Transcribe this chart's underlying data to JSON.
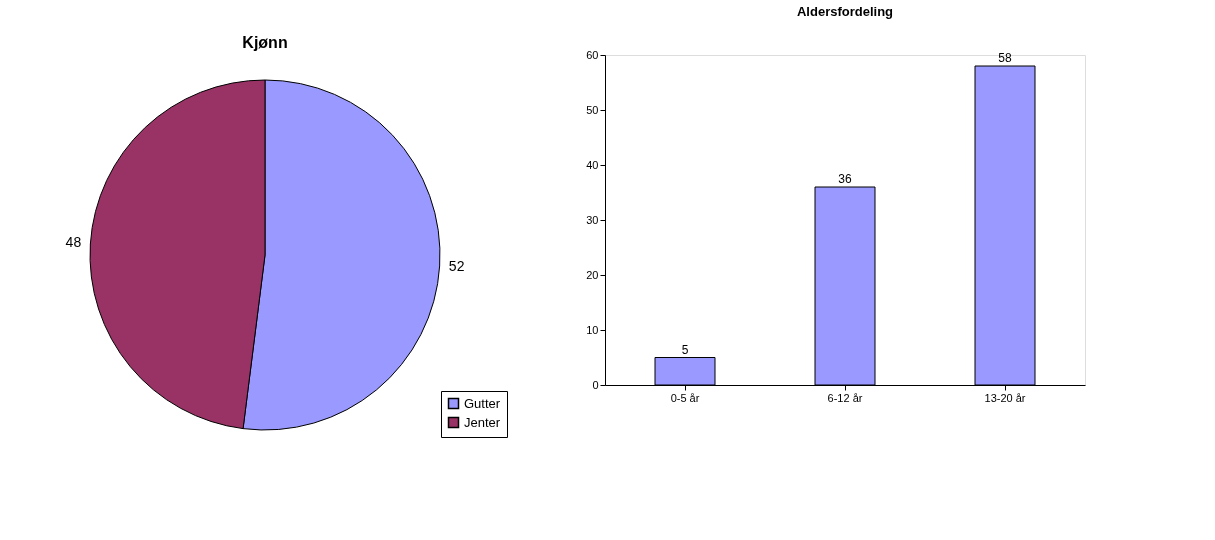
{
  "chart_data": [
    {
      "type": "pie",
      "title": "Kjønn",
      "categories": [
        "Gutter",
        "Jenter"
      ],
      "values": [
        52,
        48
      ],
      "colors": [
        "#9999ff",
        "#993366"
      ],
      "data_labels": true,
      "legend": "bottom right"
    },
    {
      "type": "bar",
      "title": "Aldersfordeling",
      "categories": [
        "0-5 år",
        "6-12 år",
        "13-20 år"
      ],
      "values": [
        5,
        36,
        58
      ],
      "color": "#9999ff",
      "ylim": [
        0,
        60
      ],
      "yticks": [
        0,
        10,
        20,
        30,
        40,
        50,
        60
      ],
      "data_labels": true,
      "grid": false
    }
  ]
}
